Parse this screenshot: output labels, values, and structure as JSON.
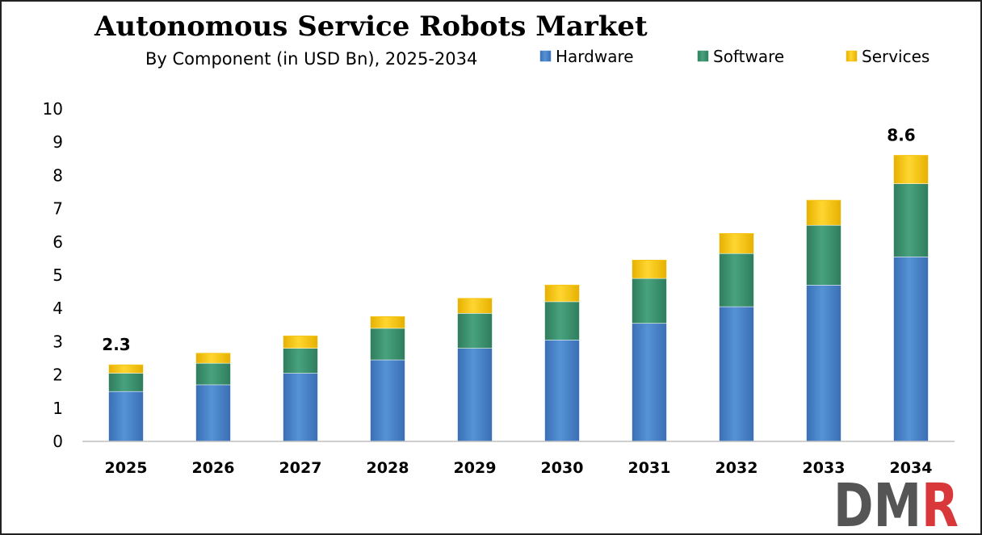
{
  "chart_data": {
    "type": "bar",
    "stacked": true,
    "title": "Autonomous Service Robots Market",
    "subtitle": "By Component (in USD Bn), 2025-2034",
    "xlabel": "",
    "ylabel": "",
    "categories": [
      "2025",
      "2026",
      "2027",
      "2028",
      "2029",
      "2030",
      "2031",
      "2032",
      "2033",
      "2034"
    ],
    "series": [
      {
        "name": "Hardware",
        "color": "#4a82c8",
        "values": [
          1.5,
          1.7,
          2.05,
          2.45,
          2.8,
          3.05,
          3.55,
          4.05,
          4.7,
          5.55
        ]
      },
      {
        "name": "Software",
        "color": "#3d9470",
        "values": [
          0.55,
          0.65,
          0.75,
          0.95,
          1.05,
          1.15,
          1.35,
          1.6,
          1.8,
          2.2
        ]
      },
      {
        "name": "Services",
        "color": "#f4c20d",
        "values": [
          0.25,
          0.3,
          0.37,
          0.35,
          0.45,
          0.5,
          0.55,
          0.6,
          0.75,
          0.85
        ]
      }
    ],
    "ylim": [
      0,
      10
    ],
    "yticks": [
      "0",
      "1",
      "2",
      "3",
      "4",
      "5",
      "6",
      "7",
      "8",
      "9",
      "10"
    ],
    "data_labels": [
      {
        "category": "2025",
        "text": "2.3"
      },
      {
        "category": "2034",
        "text": "8.6"
      }
    ],
    "grid": false,
    "legend_position": "top-right"
  },
  "logo": {
    "text": "DMR",
    "color_left": "#555555",
    "color_right": "#d9383a"
  }
}
